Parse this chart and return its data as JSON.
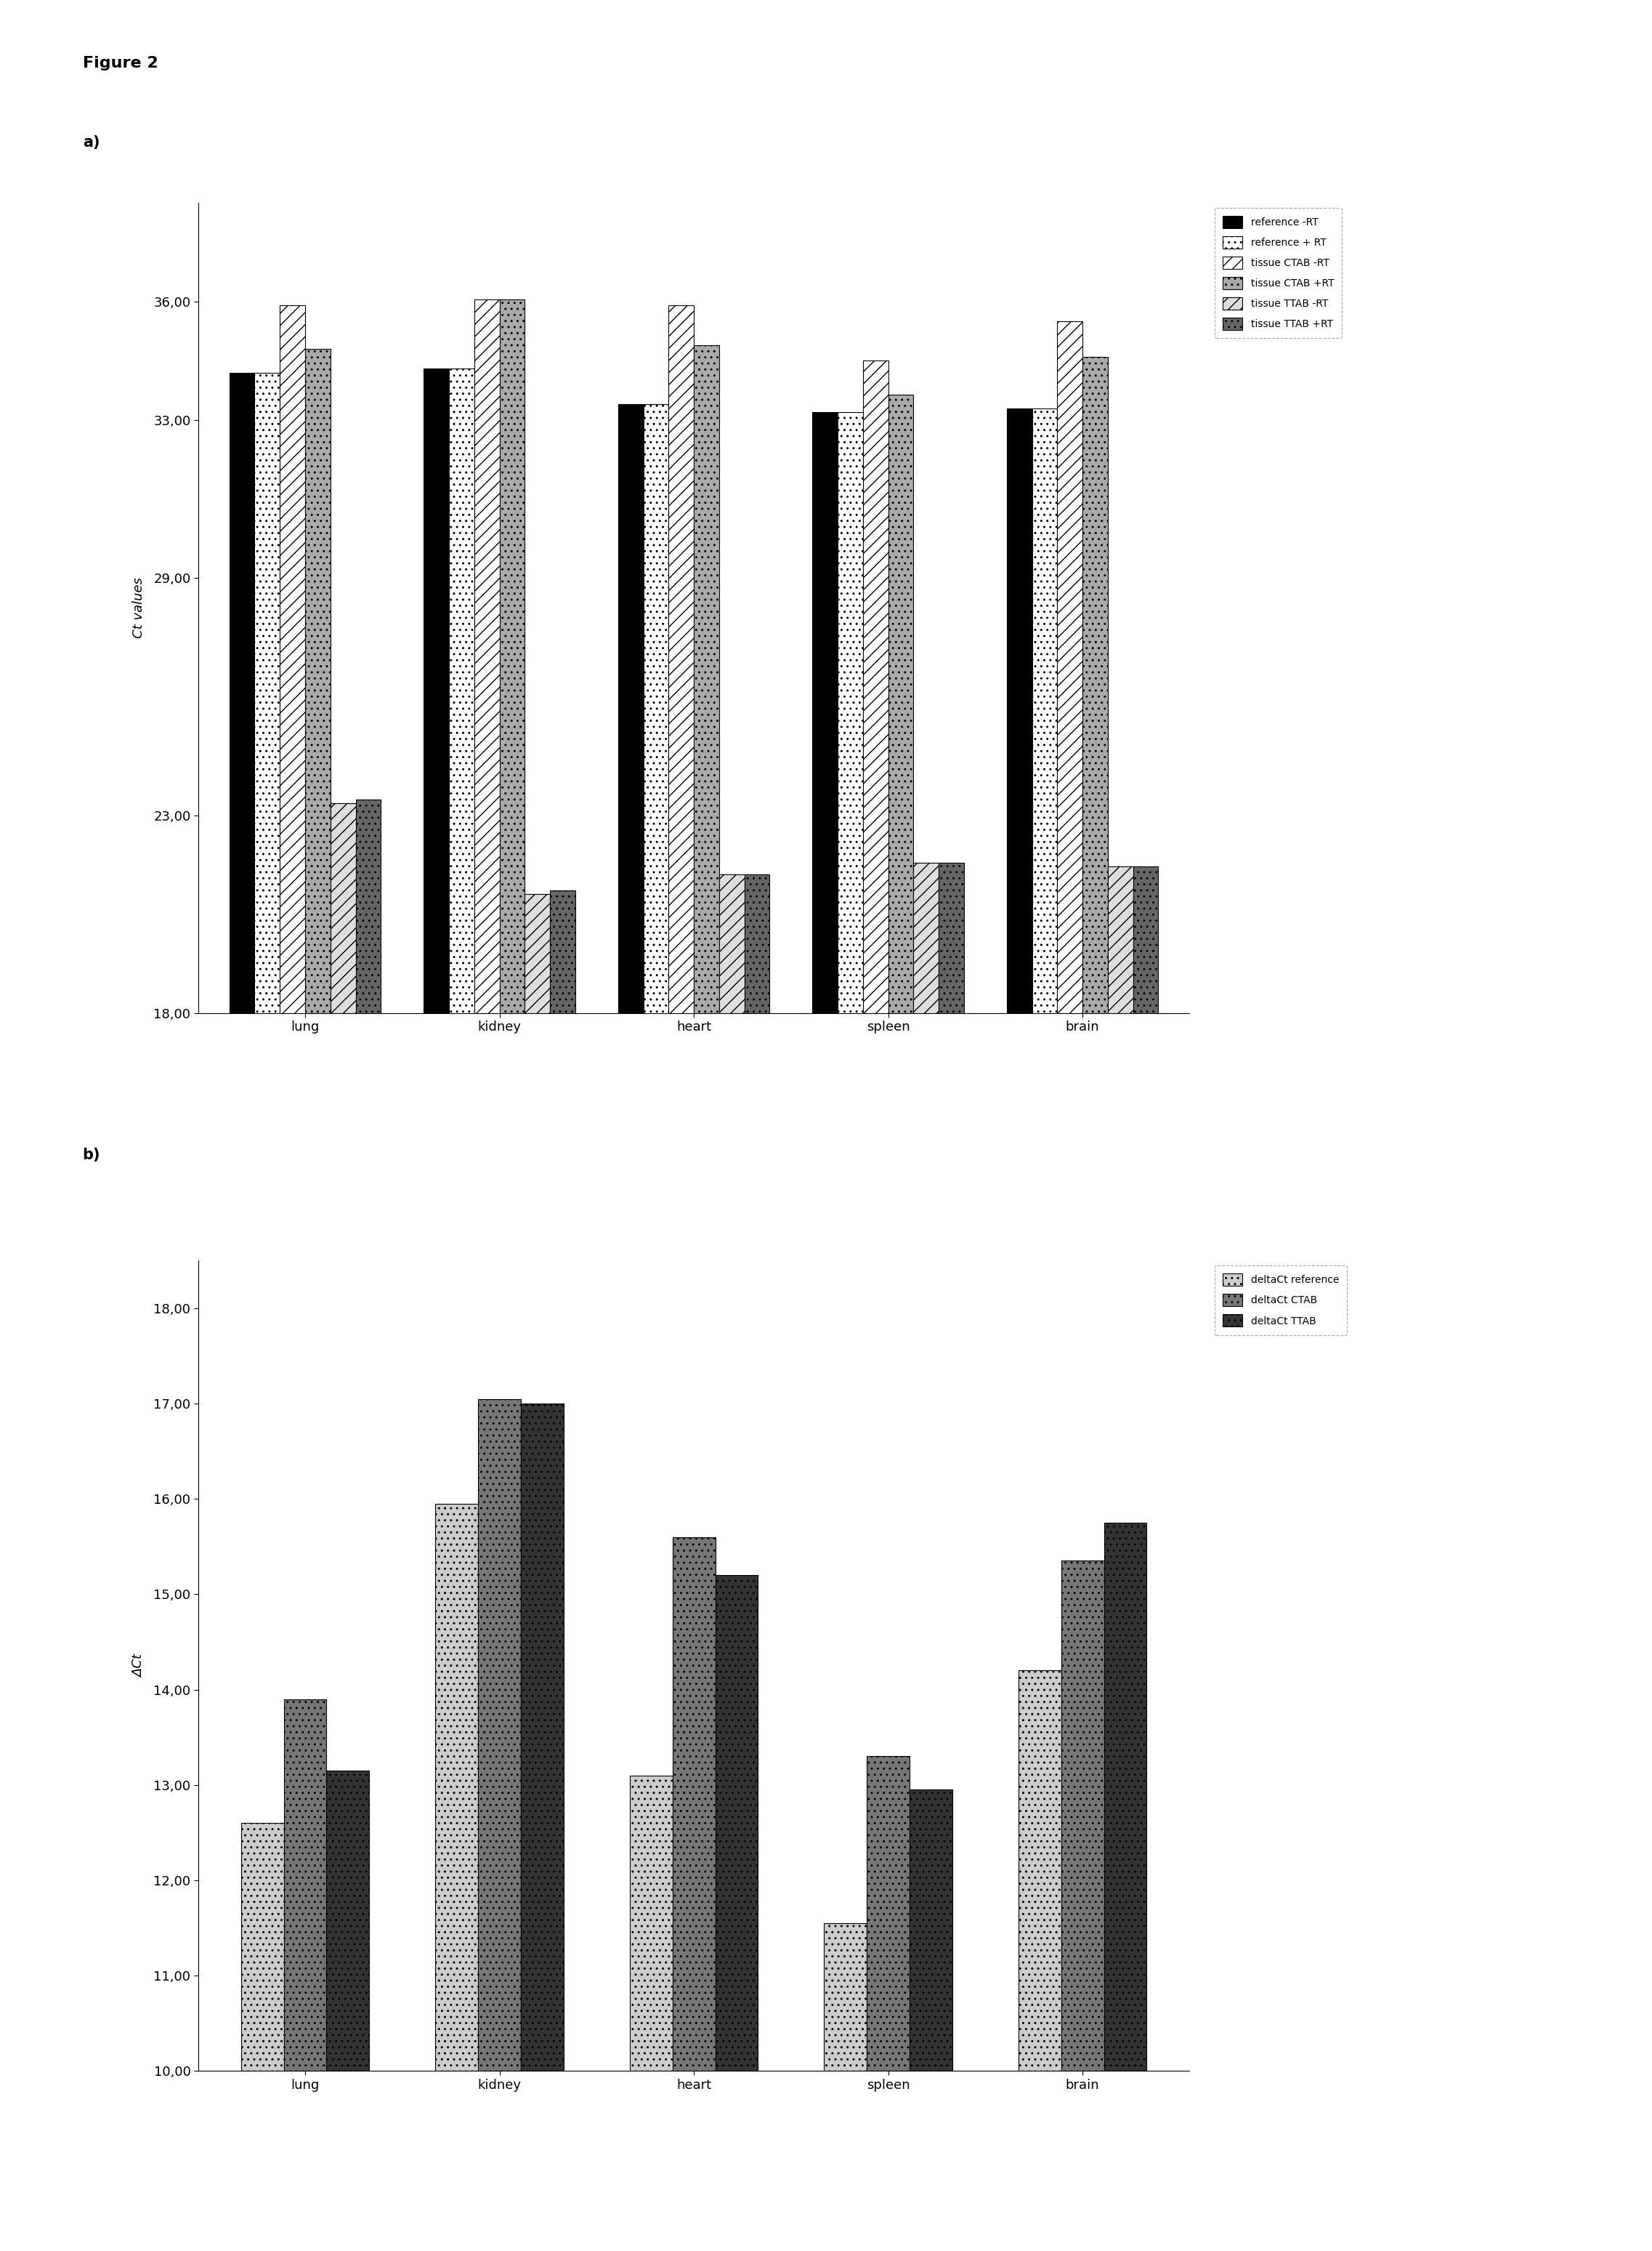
{
  "figure_label": "Figure 2",
  "panel_a_label": "a)",
  "panel_b_label": "b)",
  "categories": [
    "lung",
    "kidney",
    "heart",
    "spleen",
    "brain"
  ],
  "panel_a": {
    "ylabel": "Ct values",
    "ylim": [
      18.0,
      38.5
    ],
    "yticks": [
      18.0,
      23.0,
      29.0,
      33.0,
      36.0
    ],
    "ytick_labels": [
      "18,00",
      "23,00",
      "29,00",
      "33,00",
      "36,00"
    ],
    "series": {
      "reference_mRT": [
        34.2,
        34.3,
        33.4,
        33.2,
        33.3
      ],
      "reference_pRT": [
        34.2,
        34.3,
        33.4,
        33.2,
        33.3
      ],
      "tissue_CTAB_mRT": [
        35.9,
        36.05,
        35.9,
        34.5,
        35.5
      ],
      "tissue_CTAB_pRT": [
        34.8,
        36.05,
        34.9,
        33.65,
        34.6
      ],
      "tissue_TTAB_mRT": [
        23.3,
        21.0,
        21.5,
        21.8,
        21.7
      ],
      "tissue_TTAB_pRT": [
        23.4,
        21.1,
        21.5,
        21.8,
        21.7
      ]
    },
    "legend_labels": [
      "reference -RT",
      "reference + RT",
      "tissue CTAB -RT",
      "tissue CTAB +RT",
      "tissue TTAB -RT",
      "tissue TTAB +RT"
    ]
  },
  "panel_b": {
    "ylabel": "ΔCt",
    "ylim": [
      10.0,
      18.5
    ],
    "yticks": [
      10.0,
      11.0,
      12.0,
      13.0,
      14.0,
      15.0,
      16.0,
      17.0,
      18.0
    ],
    "ytick_labels": [
      "10,00",
      "11,00",
      "12,00",
      "13,00",
      "14,00",
      "15,00",
      "16,00",
      "17,00",
      "18,00"
    ],
    "series": {
      "deltaCt_reference": [
        12.6,
        15.95,
        13.1,
        11.55,
        14.2
      ],
      "deltaCt_CTAB": [
        13.9,
        17.05,
        15.6,
        13.3,
        15.35
      ],
      "deltaCt_TTAB": [
        13.15,
        17.0,
        15.2,
        12.95,
        15.75
      ]
    },
    "legend_labels": [
      "deltaCt reference",
      "deltaCt CTAB",
      "deltaCt TTAB"
    ]
  }
}
